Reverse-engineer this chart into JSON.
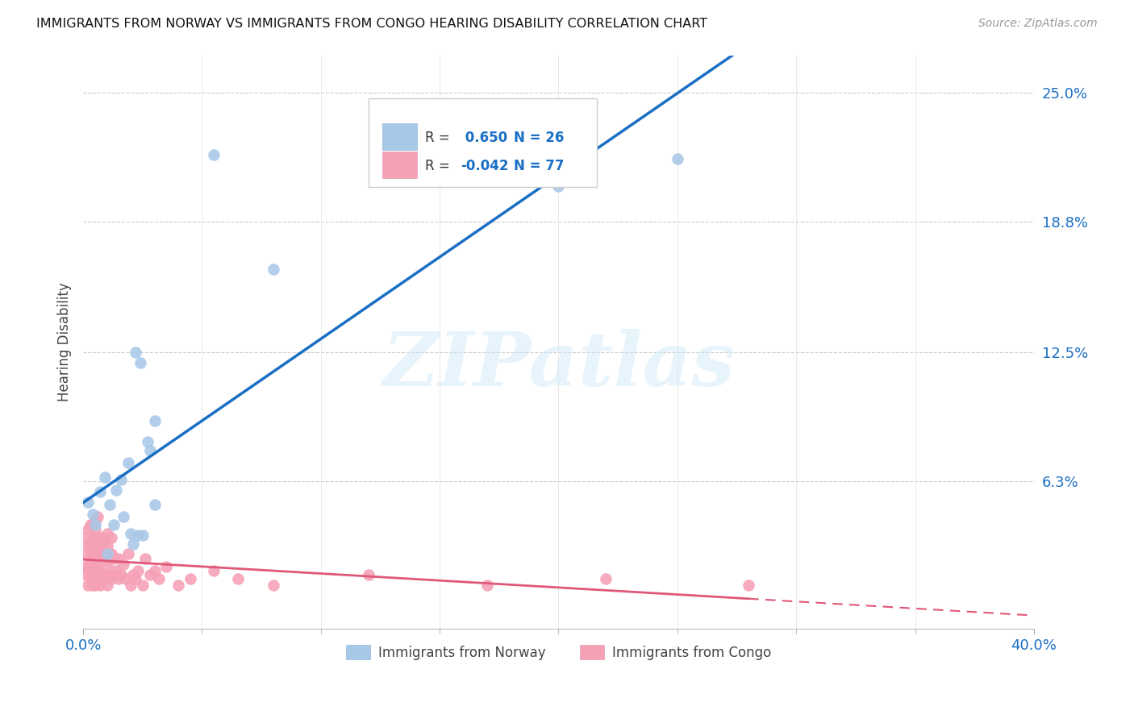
{
  "title": "IMMIGRANTS FROM NORWAY VS IMMIGRANTS FROM CONGO HEARING DISABILITY CORRELATION CHART",
  "source": "Source: ZipAtlas.com",
  "legend_labels": [
    "Immigrants from Norway",
    "Immigrants from Congo"
  ],
  "ylabel": "Hearing Disability",
  "xlim": [
    0.0,
    0.4
  ],
  "ylim": [
    -0.008,
    0.268
  ],
  "yticks": [
    0.0,
    0.063,
    0.125,
    0.188,
    0.25
  ],
  "ytick_labels": [
    "",
    "6.3%",
    "12.5%",
    "18.8%",
    "25.0%"
  ],
  "xticks_minor": [
    0.05,
    0.1,
    0.15,
    0.2,
    0.25,
    0.3,
    0.35
  ],
  "xtick_major": [
    0.0,
    0.4
  ],
  "xtick_major_labels": [
    "0.0%",
    "40.0%"
  ],
  "norway_R": 0.65,
  "norway_N": 26,
  "congo_R": -0.042,
  "congo_N": 77,
  "norway_color": "#a8c8e8",
  "norway_line_color": "#1a6fc4",
  "congo_color": "#f5a0b5",
  "congo_line_color": "#e05878",
  "text_color": "#1a6fc4",
  "background_color": "#ffffff",
  "watermark": "ZIPatlas",
  "norway_x": [
    0.002,
    0.004,
    0.005,
    0.007,
    0.009,
    0.01,
    0.011,
    0.013,
    0.014,
    0.016,
    0.017,
    0.019,
    0.021,
    0.023,
    0.025,
    0.027,
    0.028,
    0.02,
    0.022,
    0.024,
    0.03,
    0.03,
    0.055,
    0.08,
    0.2,
    0.25
  ],
  "norway_y": [
    0.053,
    0.047,
    0.042,
    0.058,
    0.065,
    0.028,
    0.052,
    0.042,
    0.059,
    0.064,
    0.046,
    0.072,
    0.033,
    0.037,
    0.037,
    0.082,
    0.078,
    0.038,
    0.125,
    0.12,
    0.092,
    0.052,
    0.22,
    0.165,
    0.205,
    0.218
  ],
  "congo_x": [
    0.0005,
    0.001,
    0.001,
    0.001,
    0.002,
    0.002,
    0.002,
    0.002,
    0.003,
    0.003,
    0.003,
    0.003,
    0.003,
    0.003,
    0.004,
    0.004,
    0.004,
    0.004,
    0.004,
    0.005,
    0.005,
    0.005,
    0.005,
    0.005,
    0.005,
    0.006,
    0.006,
    0.006,
    0.006,
    0.006,
    0.007,
    0.007,
    0.007,
    0.007,
    0.008,
    0.008,
    0.008,
    0.009,
    0.009,
    0.009,
    0.01,
    0.01,
    0.01,
    0.01,
    0.011,
    0.011,
    0.012,
    0.012,
    0.012,
    0.013,
    0.013,
    0.014,
    0.015,
    0.015,
    0.016,
    0.017,
    0.018,
    0.019,
    0.02,
    0.021,
    0.022,
    0.023,
    0.025,
    0.026,
    0.028,
    0.03,
    0.032,
    0.035,
    0.04,
    0.045,
    0.055,
    0.065,
    0.08,
    0.12,
    0.17,
    0.22,
    0.28
  ],
  "congo_y": [
    0.022,
    0.018,
    0.028,
    0.036,
    0.013,
    0.022,
    0.032,
    0.04,
    0.018,
    0.026,
    0.034,
    0.042,
    0.016,
    0.03,
    0.013,
    0.022,
    0.028,
    0.036,
    0.042,
    0.013,
    0.02,
    0.028,
    0.036,
    0.04,
    0.044,
    0.016,
    0.022,
    0.03,
    0.036,
    0.046,
    0.013,
    0.025,
    0.018,
    0.032,
    0.018,
    0.028,
    0.036,
    0.016,
    0.028,
    0.034,
    0.013,
    0.022,
    0.032,
    0.038,
    0.018,
    0.026,
    0.016,
    0.028,
    0.036,
    0.018,
    0.026,
    0.02,
    0.016,
    0.026,
    0.018,
    0.023,
    0.016,
    0.028,
    0.013,
    0.018,
    0.016,
    0.02,
    0.013,
    0.026,
    0.018,
    0.02,
    0.016,
    0.022,
    0.013,
    0.016,
    0.02,
    0.016,
    0.013,
    0.018,
    0.013,
    0.016,
    0.013
  ]
}
